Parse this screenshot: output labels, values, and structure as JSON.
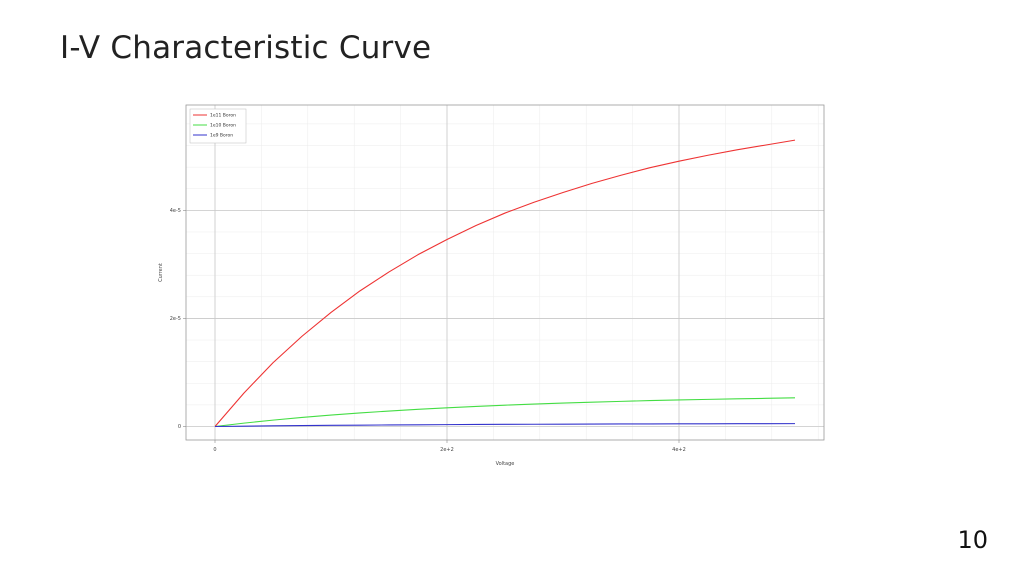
{
  "slide": {
    "title": "I-V Characteristic Curve",
    "page_number": "10"
  },
  "chart_data": {
    "type": "line",
    "xlabel": "Voltage",
    "ylabel": "Current",
    "xlim": [
      -25,
      525
    ],
    "ylim": [
      -2.5e-06,
      5.95e-05
    ],
    "x_ticks": [
      {
        "value": 0,
        "label": "0"
      },
      {
        "value": 200,
        "label": "2e+2"
      },
      {
        "value": 400,
        "label": "4e+2"
      }
    ],
    "y_ticks": [
      {
        "value": 0,
        "label": "0"
      },
      {
        "value": 2e-05,
        "label": "2e-5"
      },
      {
        "value": 4e-05,
        "label": "4e-5"
      }
    ],
    "grid": true,
    "legend_position": "top-left",
    "x": [
      0,
      25,
      50,
      75,
      100,
      125,
      150,
      175,
      200,
      225,
      250,
      275,
      300,
      325,
      350,
      375,
      400,
      425,
      450,
      475,
      500
    ],
    "series": [
      {
        "name": "1e11 Boron",
        "color": "#ee3333",
        "values": [
          0,
          6.2e-06,
          1.18e-05,
          1.67e-05,
          2.11e-05,
          2.51e-05,
          2.86e-05,
          3.18e-05,
          3.46e-05,
          3.72e-05,
          3.95e-05,
          4.15e-05,
          4.33e-05,
          4.5e-05,
          4.65e-05,
          4.79e-05,
          4.91e-05,
          5.02e-05,
          5.12e-05,
          5.21e-05,
          5.3e-05
        ]
      },
      {
        "name": "1e10 Boron",
        "color": "#44dd44",
        "values": [
          0,
          6.2e-07,
          1.18e-06,
          1.67e-06,
          2.11e-06,
          2.51e-06,
          2.86e-06,
          3.18e-06,
          3.46e-06,
          3.72e-06,
          3.95e-06,
          4.15e-06,
          4.33e-06,
          4.5e-06,
          4.65e-06,
          4.79e-06,
          4.91e-06,
          5.02e-06,
          5.12e-06,
          5.21e-06,
          5.3e-06
        ]
      },
      {
        "name": "1e9 Boron",
        "color": "#3333cc",
        "values": [
          0,
          6.2e-08,
          1.18e-07,
          1.67e-07,
          2.11e-07,
          2.51e-07,
          2.86e-07,
          3.18e-07,
          3.46e-07,
          3.72e-07,
          3.95e-07,
          4.15e-07,
          4.33e-07,
          4.5e-07,
          4.65e-07,
          4.79e-07,
          4.91e-07,
          5.02e-07,
          5.12e-07,
          5.21e-07,
          5.3e-07
        ]
      }
    ]
  }
}
